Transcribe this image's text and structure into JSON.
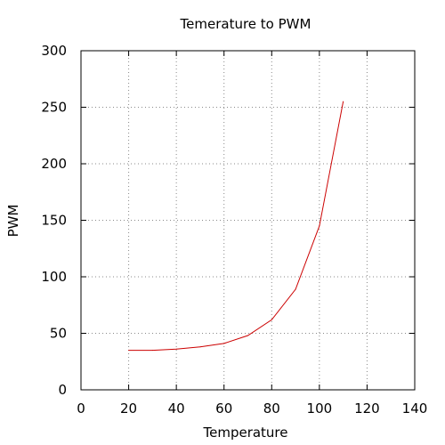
{
  "chart_data": {
    "type": "line",
    "title": "Temerature to PWM",
    "xlabel": "Temperature",
    "ylabel": "PWM",
    "xlim": [
      0,
      140
    ],
    "ylim": [
      0,
      300
    ],
    "x_ticks": [
      "0",
      "20",
      "40",
      "60",
      "80",
      "100",
      "120",
      "140"
    ],
    "y_ticks": [
      "0",
      "50",
      "100",
      "150",
      "200",
      "250",
      "300"
    ],
    "grid": true,
    "legend": "none",
    "series": [
      {
        "color": "#cc0000",
        "x": [
          20,
          30,
          40,
          50,
          60,
          70,
          80,
          90,
          100,
          110
        ],
        "y": [
          35,
          35,
          36,
          38,
          41,
          48,
          62,
          89,
          145,
          255
        ]
      }
    ]
  }
}
